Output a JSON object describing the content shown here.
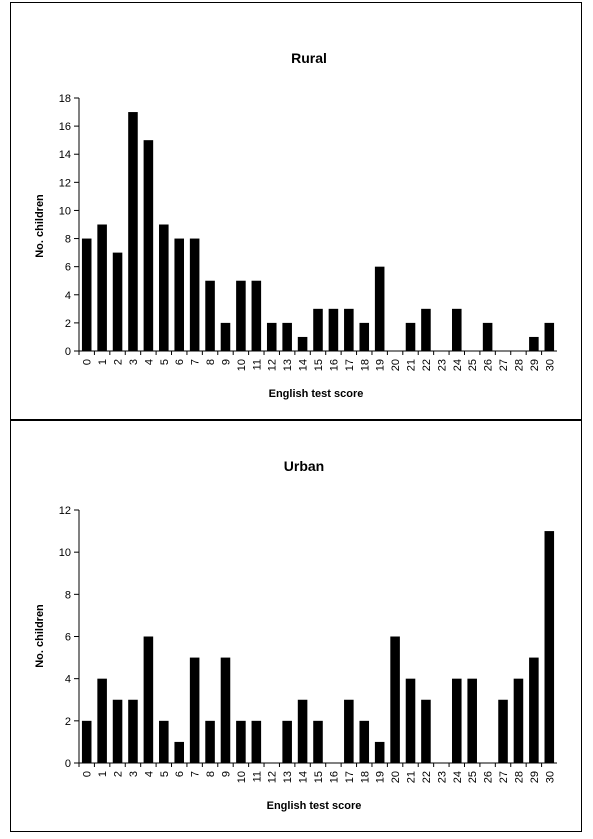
{
  "chart_data": [
    {
      "type": "bar",
      "title": "Rural",
      "xlabel": "English test score",
      "ylabel": "No. children",
      "ylim": [
        0,
        18
      ],
      "yticks": [
        0,
        2,
        4,
        6,
        8,
        10,
        12,
        14,
        16,
        18
      ],
      "categories": [
        "0",
        "1",
        "2",
        "3",
        "4",
        "5",
        "6",
        "7",
        "8",
        "9",
        "10",
        "11",
        "12",
        "13",
        "14",
        "15",
        "16",
        "17",
        "18",
        "19",
        "20",
        "21",
        "22",
        "23",
        "24",
        "25",
        "26",
        "27",
        "28",
        "29",
        "30"
      ],
      "values": [
        8,
        9,
        7,
        17,
        15,
        9,
        8,
        8,
        5,
        2,
        5,
        5,
        2,
        2,
        1,
        3,
        3,
        3,
        2,
        6,
        0,
        2,
        3,
        0,
        3,
        0,
        2,
        0,
        0,
        1,
        2
      ],
      "bar_color": "#000000",
      "grid": false
    },
    {
      "type": "bar",
      "title": "Urban",
      "xlabel": "English test score",
      "ylabel": "No. children",
      "ylim": [
        0,
        12
      ],
      "yticks": [
        0,
        2,
        4,
        6,
        8,
        10,
        12
      ],
      "categories": [
        "0",
        "1",
        "2",
        "3",
        "4",
        "5",
        "6",
        "7",
        "8",
        "9",
        "10",
        "11",
        "12",
        "13",
        "14",
        "15",
        "16",
        "17",
        "18",
        "19",
        "20",
        "21",
        "22",
        "23",
        "24",
        "25",
        "26",
        "27",
        "28",
        "29",
        "30"
      ],
      "values": [
        2,
        4,
        3,
        3,
        6,
        2,
        1,
        5,
        2,
        5,
        2,
        2,
        0,
        2,
        3,
        2,
        0,
        3,
        2,
        1,
        6,
        4,
        3,
        0,
        4,
        4,
        0,
        3,
        4,
        5,
        11
      ],
      "bar_color": "#000000",
      "grid": false
    }
  ]
}
